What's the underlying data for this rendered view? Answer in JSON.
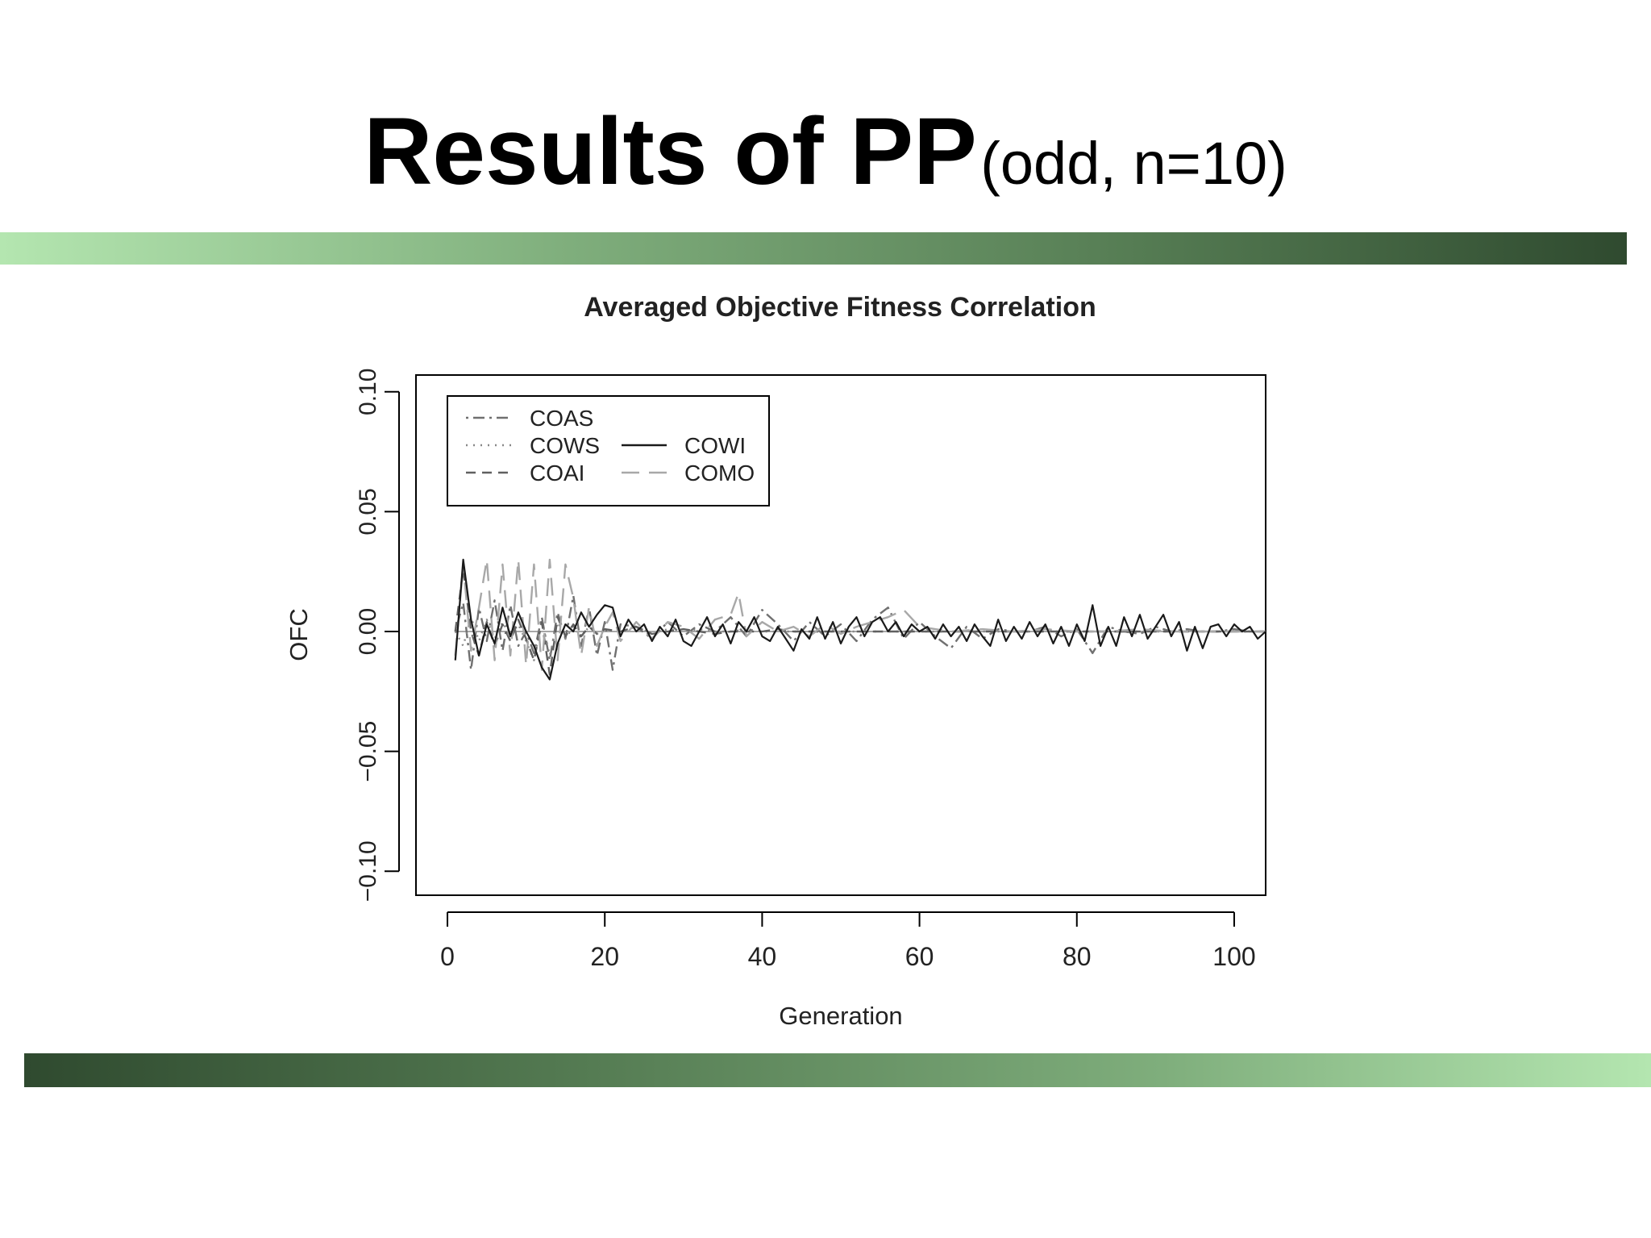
{
  "slide": {
    "title_main": "Results of PP",
    "title_sub": "(odd, n=10)"
  },
  "colors": {
    "bar_light": "#b4e6b0",
    "bar_dark": "#2f4a2f"
  },
  "chart_data": {
    "type": "line",
    "title": "Averaged Objective Fitness Correlation",
    "xlabel": "Generation",
    "ylabel": "OFC",
    "xlim": [
      -4,
      104
    ],
    "ylim": [
      -0.11,
      0.107
    ],
    "xticks": [
      0,
      20,
      40,
      60,
      80,
      100
    ],
    "xtick_labels": [
      "0",
      "20",
      "40",
      "60",
      "80",
      "100"
    ],
    "yticks": [
      -0.1,
      -0.05,
      0.0,
      0.05,
      0.1
    ],
    "ytick_labels": [
      "−0.10",
      "−0.05",
      "0.00",
      "0.05",
      "0.10"
    ],
    "legend_position": "top-left",
    "grid": false,
    "series": [
      {
        "name": "COAS",
        "style": "dotdash",
        "color": "#707070",
        "x": [
          1,
          2,
          3,
          4,
          5,
          6,
          7,
          8,
          9,
          10,
          11,
          12,
          13,
          14,
          15,
          16,
          17,
          18,
          19,
          20,
          21,
          22,
          24,
          26,
          28,
          30,
          32,
          34,
          36,
          38,
          40,
          42,
          44,
          46,
          48,
          50,
          52,
          54,
          56,
          58,
          60,
          62,
          64,
          66,
          68,
          70,
          72,
          74,
          76,
          78,
          80,
          82,
          84,
          86,
          88,
          90,
          92,
          94,
          96,
          98,
          100,
          102,
          104
        ],
        "y": [
          0.0,
          0.012,
          -0.016,
          0.01,
          -0.004,
          0.013,
          -0.008,
          0.011,
          -0.006,
          0.0,
          -0.009,
          0.006,
          -0.012,
          0.008,
          -0.003,
          0.015,
          -0.006,
          0.01,
          -0.01,
          0.004,
          -0.016,
          0.003,
          0.002,
          -0.003,
          0.004,
          -0.002,
          0.003,
          0.0,
          0.006,
          -0.002,
          0.009,
          0.003,
          -0.004,
          0.004,
          -0.002,
          0.003,
          -0.004,
          0.005,
          0.01,
          -0.003,
          0.004,
          -0.002,
          -0.007,
          0.002,
          -0.003,
          0.001,
          0.0,
          0.0,
          0.002,
          -0.002,
          0.001,
          -0.009,
          0.002,
          0.0,
          -0.001,
          0.002,
          0.0,
          0.001,
          0.0,
          0.0,
          0.001,
          0.0,
          0.0
        ]
      },
      {
        "name": "COWS",
        "style": "dotted",
        "color": "#888888",
        "x": [
          1,
          2,
          3,
          4,
          5,
          6,
          7,
          8,
          9,
          10,
          11,
          12,
          13,
          14,
          15,
          16,
          17,
          18,
          19,
          20,
          22,
          24,
          26,
          28,
          30,
          32,
          34,
          36,
          38,
          40,
          44,
          48,
          52,
          56,
          60,
          64,
          68,
          72,
          76,
          80,
          84,
          88,
          92,
          96,
          100,
          104
        ],
        "y": [
          0.0,
          -0.006,
          0.006,
          -0.004,
          0.005,
          -0.003,
          0.004,
          -0.002,
          0.003,
          -0.004,
          -0.012,
          0.005,
          -0.01,
          0.004,
          -0.003,
          0.002,
          -0.002,
          0.002,
          -0.001,
          0.001,
          0.0,
          0.002,
          -0.001,
          0.001,
          0.0,
          0.001,
          0.0,
          0.0,
          0.001,
          0.0,
          0.0,
          0.0,
          0.0,
          0.0,
          0.0,
          0.0,
          0.0,
          0.0,
          0.0,
          0.0,
          0.0,
          0.0,
          0.0,
          0.0,
          0.0,
          0.0
        ]
      },
      {
        "name": "COAI",
        "style": "dashed",
        "color": "#606060",
        "x": [
          1,
          2,
          3,
          4,
          5,
          6,
          7,
          8,
          9,
          10,
          11,
          12,
          13,
          14,
          15,
          16,
          17,
          18,
          19,
          20,
          22,
          24,
          26,
          28,
          30,
          32,
          34,
          36,
          38,
          40,
          42,
          44,
          46,
          48,
          50,
          52,
          54,
          56,
          58,
          60,
          64,
          68,
          72,
          76,
          80,
          84,
          88,
          92,
          96,
          100,
          104
        ],
        "y": [
          0.0,
          0.026,
          0.0,
          -0.01,
          0.004,
          -0.006,
          0.003,
          -0.004,
          0.005,
          -0.003,
          -0.012,
          0.004,
          -0.018,
          0.006,
          -0.002,
          0.003,
          -0.002,
          0.002,
          -0.001,
          0.001,
          0.0,
          0.002,
          -0.001,
          0.0,
          0.001,
          0.0,
          -0.001,
          0.0,
          0.0,
          0.0,
          0.001,
          0.0,
          0.0,
          0.0,
          0.0,
          0.0,
          0.0,
          0.0,
          0.0,
          0.0,
          0.0,
          0.0,
          0.0,
          0.0,
          0.0,
          0.0,
          0.0,
          0.0,
          0.0,
          0.0,
          0.0
        ]
      },
      {
        "name": "COWI",
        "style": "solid",
        "color": "#1a1a1a",
        "x": [
          1,
          2,
          3,
          4,
          5,
          6,
          7,
          8,
          9,
          10,
          11,
          12,
          13,
          14,
          15,
          16,
          17,
          18,
          19,
          20,
          21,
          22,
          23,
          24,
          25,
          26,
          27,
          28,
          29,
          30,
          31,
          32,
          33,
          34,
          35,
          36,
          37,
          38,
          39,
          40,
          41,
          42,
          43,
          44,
          45,
          46,
          47,
          48,
          49,
          50,
          51,
          52,
          53,
          54,
          55,
          56,
          57,
          58,
          59,
          60,
          61,
          62,
          63,
          64,
          65,
          66,
          67,
          68,
          69,
          70,
          71,
          72,
          73,
          74,
          75,
          76,
          77,
          78,
          79,
          80,
          81,
          82,
          83,
          84,
          85,
          86,
          87,
          88,
          89,
          90,
          91,
          92,
          93,
          94,
          95,
          96,
          97,
          98,
          99,
          100,
          101,
          102,
          103,
          104
        ],
        "y": [
          -0.012,
          0.03,
          0.005,
          -0.01,
          0.003,
          -0.005,
          0.01,
          -0.002,
          0.008,
          0.0,
          -0.006,
          -0.015,
          -0.02,
          -0.005,
          0.003,
          0.0,
          0.008,
          0.002,
          0.007,
          0.011,
          0.01,
          -0.002,
          0.005,
          0.0,
          0.003,
          -0.004,
          0.002,
          -0.002,
          0.005,
          -0.004,
          -0.006,
          0.0,
          0.006,
          -0.002,
          0.003,
          -0.005,
          0.004,
          0.0,
          0.006,
          -0.002,
          -0.004,
          0.002,
          -0.003,
          -0.008,
          0.001,
          -0.003,
          0.006,
          -0.003,
          0.004,
          -0.005,
          0.002,
          0.006,
          -0.002,
          0.004,
          0.006,
          0.0,
          0.004,
          -0.002,
          0.003,
          0.0,
          0.002,
          -0.003,
          0.003,
          -0.002,
          0.002,
          -0.004,
          0.003,
          -0.002,
          -0.006,
          0.005,
          -0.004,
          0.002,
          -0.003,
          0.004,
          -0.002,
          0.003,
          -0.005,
          0.002,
          -0.006,
          0.003,
          -0.004,
          0.011,
          -0.006,
          0.002,
          -0.006,
          0.006,
          -0.002,
          0.007,
          -0.003,
          0.002,
          0.007,
          -0.002,
          0.004,
          -0.008,
          0.002,
          -0.007,
          0.002,
          0.003,
          -0.002,
          0.003,
          0.0,
          0.002,
          -0.003,
          0.0
        ]
      },
      {
        "name": "COMO",
        "style": "longdash",
        "color": "#a8a8a8",
        "x": [
          1,
          2,
          3,
          4,
          5,
          6,
          7,
          8,
          9,
          10,
          11,
          12,
          13,
          14,
          15,
          16,
          17,
          18,
          19,
          20,
          21,
          22,
          24,
          26,
          28,
          30,
          32,
          34,
          36,
          37,
          38,
          40,
          42,
          44,
          46,
          48,
          50,
          52,
          54,
          56,
          58,
          60,
          64,
          68,
          72,
          76,
          80,
          84,
          88,
          92,
          96,
          100,
          104
        ],
        "y": [
          -0.01,
          0.028,
          -0.008,
          0.01,
          0.03,
          -0.012,
          0.028,
          -0.01,
          0.03,
          -0.014,
          0.028,
          -0.016,
          0.03,
          -0.012,
          0.028,
          0.014,
          -0.01,
          0.01,
          -0.006,
          0.002,
          0.008,
          -0.004,
          0.004,
          -0.003,
          0.004,
          0.002,
          -0.003,
          0.005,
          0.007,
          0.016,
          -0.002,
          0.004,
          0.0,
          0.002,
          -0.002,
          0.003,
          -0.001,
          0.002,
          0.004,
          0.006,
          0.009,
          0.002,
          0.0,
          0.001,
          0.0,
          0.001,
          0.0,
          0.0,
          0.001,
          0.0,
          0.0,
          0.0,
          0.0
        ]
      }
    ]
  }
}
